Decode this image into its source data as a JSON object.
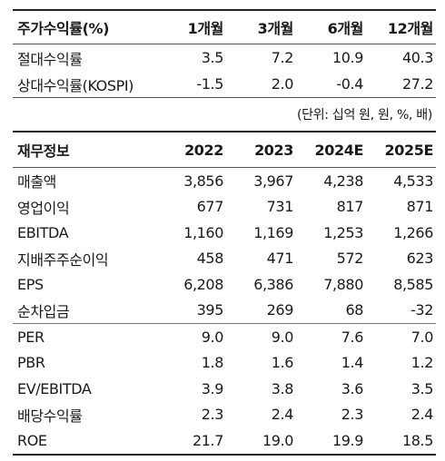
{
  "returns": {
    "header": [
      "주가수익률(%)",
      "1개월",
      "3개월",
      "6개월",
      "12개월"
    ],
    "rows": [
      {
        "label": "절대수익률",
        "values": [
          "3.5",
          "7.2",
          "10.9",
          "40.3"
        ]
      },
      {
        "label": "상대수익률(KOSPI)",
        "values": [
          "-1.5",
          "2.0",
          "-0.4",
          "27.2"
        ]
      }
    ]
  },
  "unit_note": "(단위: 십억 원, 원, %, 배)",
  "financials": {
    "header": [
      "재무정보",
      "2022",
      "2023",
      "2024E",
      "2025E"
    ],
    "rows": [
      {
        "label": "매출액",
        "values": [
          "3,856",
          "3,967",
          "4,238",
          "4,533"
        ]
      },
      {
        "label": "영업이익",
        "values": [
          "677",
          "731",
          "817",
          "871"
        ]
      },
      {
        "label": "EBITDA",
        "values": [
          "1,160",
          "1,169",
          "1,253",
          "1,266"
        ]
      },
      {
        "label": "지배주주순이익",
        "values": [
          "458",
          "471",
          "572",
          "623"
        ]
      },
      {
        "label": "EPS",
        "values": [
          "6,208",
          "6,386",
          "7,880",
          "8,585"
        ]
      },
      {
        "label": "순차입금",
        "values": [
          "395",
          "269",
          "68",
          "-32"
        ]
      },
      {
        "label": "PER",
        "values": [
          "9.0",
          "9.0",
          "7.6",
          "7.0"
        ]
      },
      {
        "label": "PBR",
        "values": [
          "1.8",
          "1.6",
          "1.4",
          "1.2"
        ]
      },
      {
        "label": "EV/EBITDA",
        "values": [
          "3.9",
          "3.8",
          "3.6",
          "3.5"
        ]
      },
      {
        "label": "배당수익률",
        "values": [
          "2.3",
          "2.4",
          "2.3",
          "2.4"
        ]
      },
      {
        "label": "ROE",
        "values": [
          "21.7",
          "19.0",
          "19.9",
          "18.5"
        ]
      }
    ]
  }
}
